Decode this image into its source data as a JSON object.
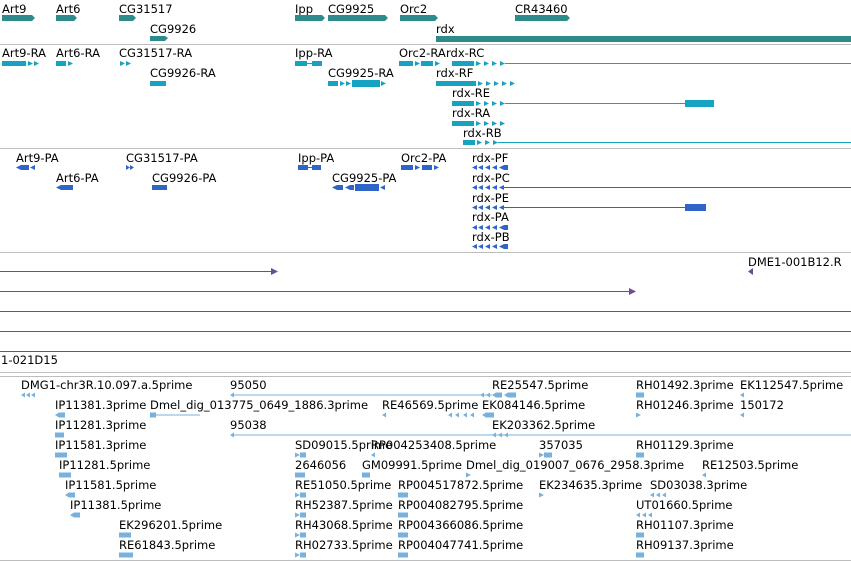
{
  "colors": {
    "gene": "#2e8b8b",
    "transcript": "#16a3c2",
    "protein": "#2f64c8",
    "clone": "#6a4b9c",
    "est": "#78b2dc",
    "divider": "#bdbdbd"
  },
  "tracks": {
    "genes": {
      "items": [
        {
          "label": "Art9",
          "strand": "+"
        },
        {
          "label": "Art6",
          "strand": "+"
        },
        {
          "label": "CG31517",
          "strand": "+"
        },
        {
          "label": "CG9926",
          "strand": "+"
        },
        {
          "label": "Ipp",
          "strand": "+"
        },
        {
          "label": "CG9925",
          "strand": "+"
        },
        {
          "label": "Orc2",
          "strand": "+"
        },
        {
          "label": "CR43460",
          "strand": "+"
        },
        {
          "label": "rdx",
          "strand": "+"
        }
      ]
    },
    "transcripts": {
      "items": [
        {
          "label": "Art9-RA"
        },
        {
          "label": "Art6-RA"
        },
        {
          "label": "CG31517-RA"
        },
        {
          "label": "CG9926-RA"
        },
        {
          "label": "Ipp-RA"
        },
        {
          "label": "CG9925-RA"
        },
        {
          "label": "Orc2-RA"
        },
        {
          "label": "rdx-RC"
        },
        {
          "label": "rdx-RF"
        },
        {
          "label": "rdx-RE"
        },
        {
          "label": "rdx-RA"
        },
        {
          "label": "rdx-RB"
        }
      ]
    },
    "proteins": {
      "items": [
        {
          "label": "Art9-PA"
        },
        {
          "label": "Art6-PA"
        },
        {
          "label": "CG31517-PA"
        },
        {
          "label": "CG9926-PA"
        },
        {
          "label": "Ipp-PA"
        },
        {
          "label": "CG9925-PA"
        },
        {
          "label": "Orc2-PA"
        },
        {
          "label": "rdx-PF"
        },
        {
          "label": "rdx-PC"
        },
        {
          "label": "rdx-PE"
        },
        {
          "label": "rdx-PA"
        },
        {
          "label": "rdx-PB"
        }
      ]
    },
    "clones": {
      "labels": [
        "DME1-001B12.R",
        "1-021D15"
      ]
    },
    "ests": {
      "items": [
        "DMG1-chr3R.10.097.a.5prime",
        "95050",
        "RE25547.5prime",
        "RH01492.3prime",
        "EK112547.5prime",
        "IP11381.3prime",
        "Dmel_dig_013775_0649_1886.3prime",
        "RE46569.5prime",
        "EK084146.5prime",
        "RH01246.3prime",
        "150172",
        "IP11281.3prime",
        "95038",
        "EK203362.5prime",
        "IP11581.3prime",
        "SD09015.5prime",
        "RP004253408.5prime",
        "357035",
        "RH01129.3prime",
        "IP11281.5prime",
        "2646056",
        "GM09991.5prime",
        "Dmel_dig_019007_0676_2958.3prime",
        "RE12503.5prime",
        "IP11581.5prime",
        "RE51050.5prime",
        "RP004517872.5prime",
        "EK234635.3prime",
        "SD03038.3prime",
        "IP11381.5prime",
        "RH52387.5prime",
        "RP004082795.5prime",
        "UT01660.5prime",
        "EK296201.5prime",
        "RH43068.5prime",
        "RP004366086.5prime",
        "RH01107.3prime",
        "RE61843.5prime",
        "RH02733.5prime",
        "RP004047741.5prime",
        "RH09137.3prime"
      ]
    }
  }
}
